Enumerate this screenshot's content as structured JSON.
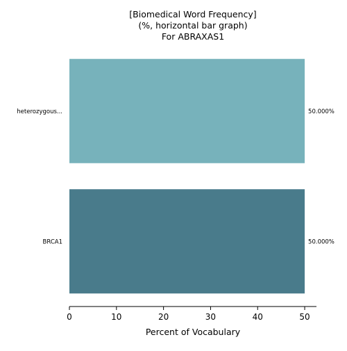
{
  "chart_data": {
    "type": "bar",
    "orientation": "horizontal",
    "title": [
      "[Biomedical Word Frequency]",
      "(%, horizontal bar graph)",
      "For ABRAXAS1"
    ],
    "categories": [
      "heterozygous...",
      "BRCA1"
    ],
    "values": [
      50.0,
      50.0
    ],
    "value_labels": [
      "50.000%",
      "50.000%"
    ],
    "colors": [
      "#77b2bb",
      "#497b8b"
    ],
    "xlabel": "Percent of Vocabulary",
    "ylabel": "",
    "xlim": [
      0,
      52.5
    ],
    "xticks": [
      0,
      10,
      20,
      30,
      40,
      50
    ],
    "grid": false,
    "legend": "none"
  }
}
